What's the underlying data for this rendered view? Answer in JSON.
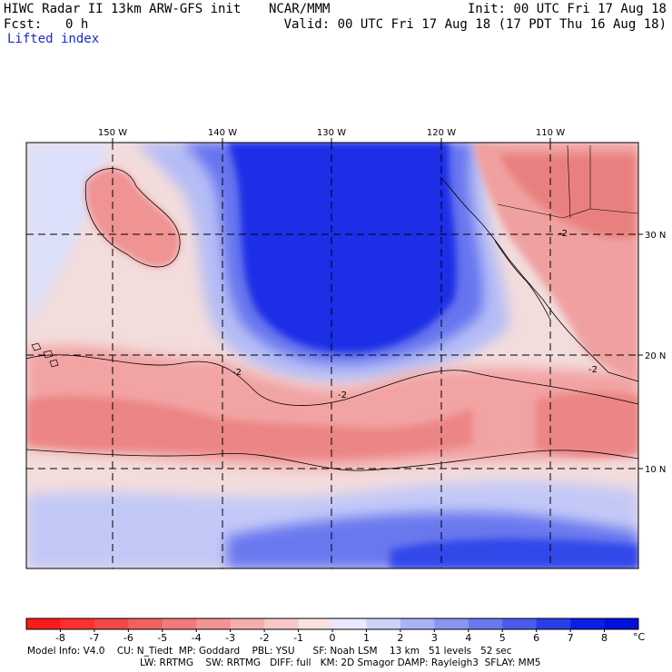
{
  "header": {
    "title": "HIWC Radar II 13km ARW-GFS init",
    "org": "NCAR/MMM",
    "init": "Init: 00 UTC Fri 17 Aug 18",
    "fcst_label": "Fcst:",
    "fcst_value": "0 h",
    "valid": "Valid: 00 UTC Fri 17 Aug 18 (17 PDT Thu 16 Aug 18)",
    "field": "Lifted index"
  },
  "map": {
    "lon_labels": [
      "150 W",
      "140 W",
      "130 W",
      "120 W",
      "110 W"
    ],
    "lat_labels": [
      "30 N",
      "20 N",
      "10 N"
    ],
    "contour_labels": [
      "-2",
      "-2",
      "-2",
      "-2"
    ],
    "colors": {
      "deep_blue": "#0018e0",
      "mid_blue": "#4a5ef0",
      "light_blue": "#b9c2f5",
      "pale": "#eef0ff",
      "light_red": "#f7c4c4",
      "mid_red": "#ef8e8e",
      "deep_red": "#e56464"
    }
  },
  "colorbar": {
    "ticks": [
      "-8",
      "-7",
      "-6",
      "-5",
      "-4",
      "-3",
      "-2",
      "-1",
      "0",
      "1",
      "2",
      "3",
      "4",
      "5",
      "6",
      "7",
      "8"
    ],
    "unit": "°C",
    "colors": [
      "#ff1a1a",
      "#ff3030",
      "#f24848",
      "#f26060",
      "#f27a7a",
      "#f29494",
      "#f5aeae",
      "#f8c8c8",
      "#fbe2e2",
      "#e8eaff",
      "#cdd2fa",
      "#aab2f6",
      "#8a95f2",
      "#6a78ee",
      "#4a5bec",
      "#2a3ee8",
      "#0a1ee4",
      "#0010dc"
    ]
  },
  "footer": {
    "line1": "Model Info: V4.0    CU: N_Tiedt  MP: Goddard    PBL: YSU      SF: Noah LSM    13 km   51 levels   52 sec",
    "line2": "LW: RRTMG    SW: RRTMG   DIFF: full   KM: 2D Smagor DAMP: Rayleigh3  SFLAY: MM5"
  }
}
